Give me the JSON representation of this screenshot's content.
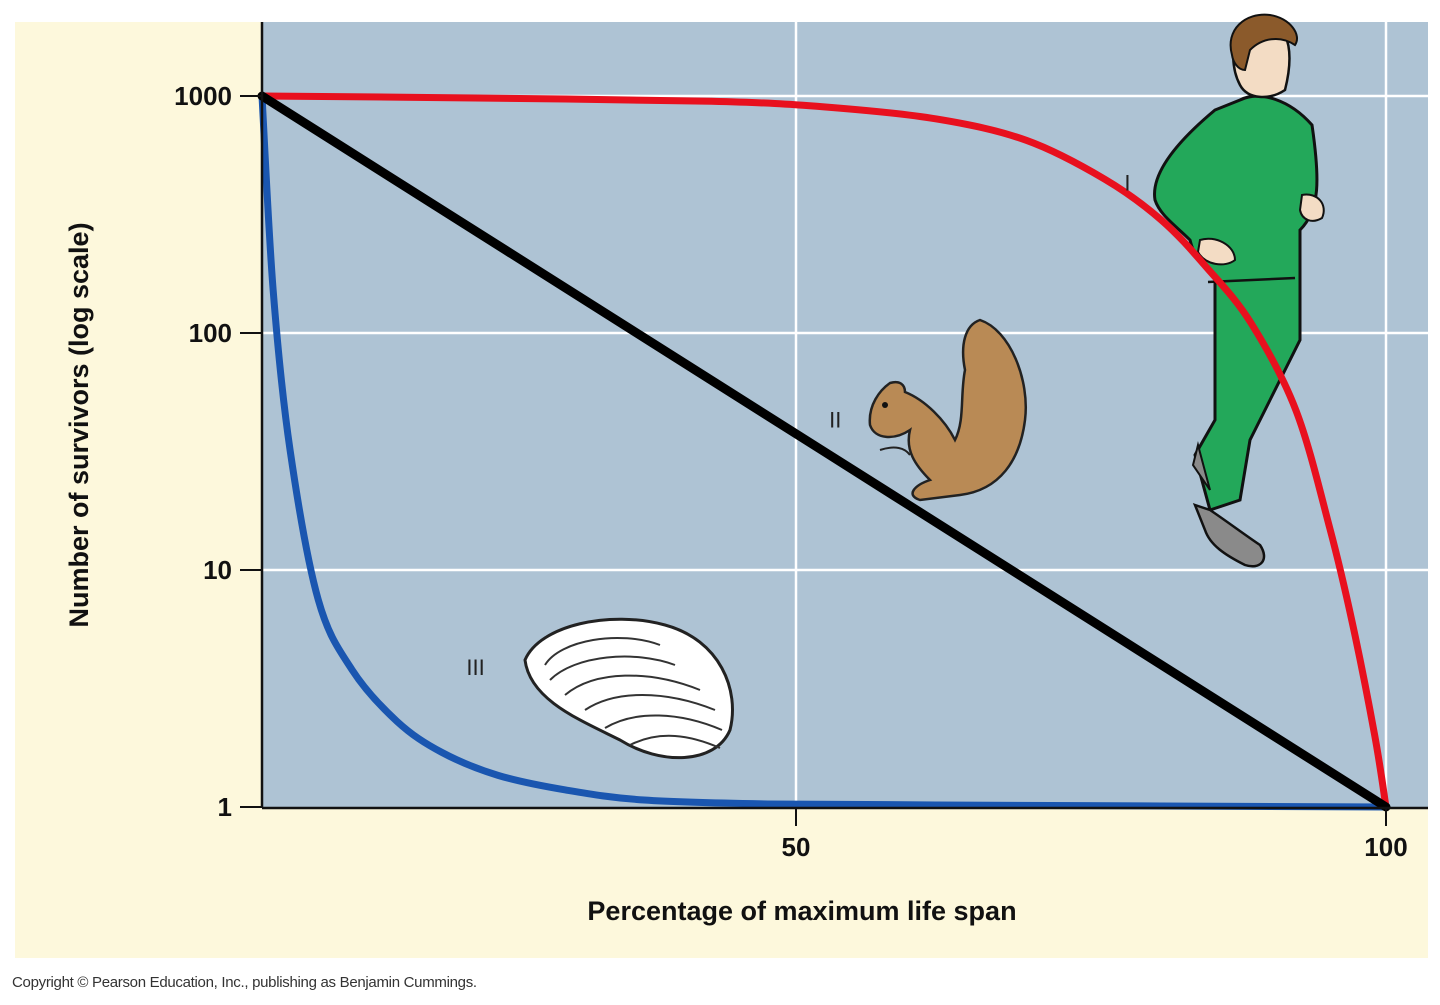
{
  "chart_data": {
    "type": "line",
    "title": "",
    "xlabel": "Percentage of maximum life span",
    "ylabel": "Number of survivors (log scale)",
    "y_scale": "log",
    "xlim": [
      0,
      104
    ],
    "ylim": [
      1,
      2050
    ],
    "x_ticks": [
      {
        "value": 50,
        "label": "50"
      },
      {
        "value": 100,
        "label": "100"
      }
    ],
    "y_ticks": [
      {
        "value": 1000,
        "label": "1000"
      },
      {
        "value": 100,
        "label": "100"
      },
      {
        "value": 10,
        "label": "10"
      },
      {
        "value": 1,
        "label": "1"
      }
    ],
    "grid": true,
    "colors": {
      "panel": "#fdf8dc",
      "plot_bg": "#aec3d4",
      "grid": "#ffffff",
      "type_I": "#e8101e",
      "type_II": "#000000",
      "type_III": "#1a56b0"
    },
    "series": [
      {
        "name": "I",
        "color": "#e8101e",
        "x": [
          0,
          20,
          40,
          50,
          60,
          68,
          75,
          80,
          84,
          88,
          92,
          95,
          97,
          99,
          100
        ],
        "y": [
          1000,
          980,
          950,
          900,
          800,
          650,
          445,
          300,
          190,
          110,
          47,
          15,
          6,
          2,
          1
        ]
      },
      {
        "name": "II",
        "color": "#000000",
        "x": [
          0,
          100
        ],
        "y": [
          1000,
          1
        ]
      },
      {
        "name": "III",
        "color": "#1a56b0",
        "x": [
          0,
          1,
          2.5,
          5,
          8,
          12,
          16,
          21,
          27,
          34,
          45,
          60,
          80,
          100
        ],
        "y": [
          1000,
          150,
          32,
          7.5,
          3.8,
          2.3,
          1.7,
          1.36,
          1.18,
          1.07,
          1.03,
          1.02,
          1.01,
          1
        ]
      }
    ],
    "annotations": [
      {
        "text": "I",
        "x": 77,
        "y": 400,
        "illustration": "human-runner"
      },
      {
        "text": "II",
        "x": 51,
        "y": 40,
        "illustration": "squirrel"
      },
      {
        "text": "III",
        "x": 19,
        "y": 3.6,
        "illustration": "oyster"
      }
    ]
  },
  "copyright": "Copyright © Pearson Education, Inc., publishing as Benjamin Cummings."
}
